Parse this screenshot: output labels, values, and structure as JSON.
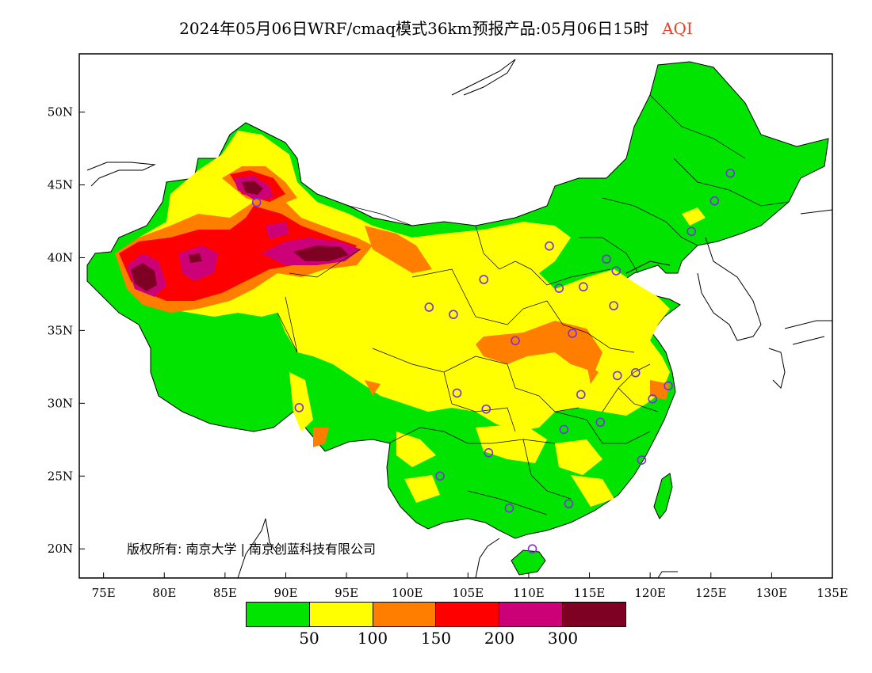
{
  "title": {
    "main": "2024年05月06日WRF/cmaq模式36km预报产品:05月06日15时",
    "variable": "AQI"
  },
  "map": {
    "lon_ticks": [
      "75E",
      "80E",
      "85E",
      "90E",
      "95E",
      "100E",
      "105E",
      "110E",
      "115E",
      "120E",
      "125E",
      "130E",
      "135E"
    ],
    "lat_ticks": [
      "50N",
      "45N",
      "40N",
      "35N",
      "30N",
      "25N",
      "20N"
    ],
    "lon_range": [
      73,
      135
    ],
    "lat_range": [
      18,
      54
    ],
    "copyright": "版权所有: 南京大学 | 南京创蓝科技有限公司",
    "colors": {
      "land_background": "#00e400",
      "ocean": "#ffffff"
    },
    "stations": [
      {
        "lon": 87.6,
        "lat": 43.8
      },
      {
        "lon": 91.1,
        "lat": 29.7
      },
      {
        "lon": 101.8,
        "lat": 36.6
      },
      {
        "lon": 103.8,
        "lat": 36.1
      },
      {
        "lon": 106.3,
        "lat": 38.5
      },
      {
        "lon": 111.7,
        "lat": 40.8
      },
      {
        "lon": 112.5,
        "lat": 37.9
      },
      {
        "lon": 114.5,
        "lat": 38.0
      },
      {
        "lon": 116.4,
        "lat": 39.9
      },
      {
        "lon": 117.2,
        "lat": 39.1
      },
      {
        "lon": 117.0,
        "lat": 36.7
      },
      {
        "lon": 113.6,
        "lat": 34.8
      },
      {
        "lon": 108.9,
        "lat": 34.3
      },
      {
        "lon": 104.1,
        "lat": 30.7
      },
      {
        "lon": 106.5,
        "lat": 29.6
      },
      {
        "lon": 106.7,
        "lat": 26.6
      },
      {
        "lon": 102.7,
        "lat": 25.0
      },
      {
        "lon": 108.4,
        "lat": 22.8
      },
      {
        "lon": 113.3,
        "lat": 23.1
      },
      {
        "lon": 110.3,
        "lat": 20.0
      },
      {
        "lon": 112.9,
        "lat": 28.2
      },
      {
        "lon": 114.3,
        "lat": 30.6
      },
      {
        "lon": 115.9,
        "lat": 28.7
      },
      {
        "lon": 117.3,
        "lat": 31.9
      },
      {
        "lon": 118.8,
        "lat": 32.1
      },
      {
        "lon": 120.2,
        "lat": 30.3
      },
      {
        "lon": 121.5,
        "lat": 31.2
      },
      {
        "lon": 119.3,
        "lat": 26.1
      },
      {
        "lon": 123.4,
        "lat": 41.8
      },
      {
        "lon": 125.3,
        "lat": 43.9
      },
      {
        "lon": 126.6,
        "lat": 45.8
      }
    ]
  },
  "legend": {
    "colors": [
      "#00e400",
      "#ffff00",
      "#ff7e00",
      "#ff0000",
      "#cc0077",
      "#7e0023"
    ],
    "labels": [
      "50",
      "100",
      "150",
      "200",
      "300"
    ]
  }
}
